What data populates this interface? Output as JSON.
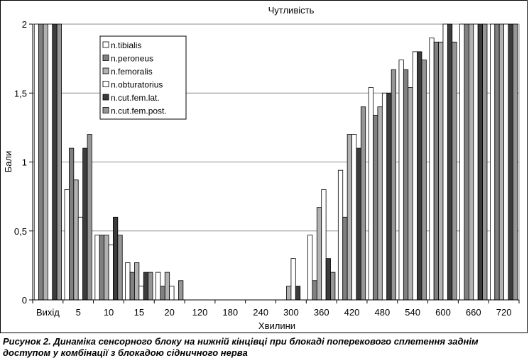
{
  "chart_data": {
    "type": "bar",
    "title": "Чутливість",
    "xlabel": "Хвилини",
    "ylabel": "Бали",
    "ylim": [
      0,
      2
    ],
    "yticks": [
      "0",
      "0,5",
      "1",
      "1,5",
      "2"
    ],
    "grid": true,
    "legend_position": "top-left",
    "categories": [
      "Вихід",
      "5",
      "10",
      "15",
      "20",
      "120",
      "180",
      "240",
      "300",
      "360",
      "420",
      "480",
      "540",
      "600",
      "660",
      "720"
    ],
    "series": [
      {
        "name": "n.tibialis",
        "color": "#ffffff",
        "values": [
          2,
          0.8,
          0.47,
          0.27,
          0.2,
          0,
          0,
          0,
          0,
          0.47,
          0.94,
          1.54,
          1.74,
          1.9,
          2,
          2
        ]
      },
      {
        "name": "n.peroneus",
        "color": "#808080",
        "values": [
          2,
          1.1,
          0.47,
          0.2,
          0.1,
          0,
          0,
          0,
          0,
          0.14,
          0.6,
          1.34,
          1.67,
          1.87,
          2,
          2
        ]
      },
      {
        "name": "n.femoralis",
        "color": "#b2b2b2",
        "values": [
          2,
          0.87,
          0.47,
          0.27,
          0.2,
          0,
          0,
          0,
          0.1,
          0.67,
          1.2,
          1.4,
          1.54,
          1.87,
          2,
          2
        ]
      },
      {
        "name": "n.obturatorius",
        "color": "#ffffff",
        "values": [
          2,
          0.6,
          0.4,
          0.1,
          0.1,
          0,
          0,
          0,
          0.3,
          0.8,
          1.2,
          1.5,
          1.8,
          2,
          2,
          2
        ]
      },
      {
        "name": "n.cut.fem.lat.",
        "color": "#3c3c3c",
        "values": [
          2,
          1.1,
          0.6,
          0.2,
          0,
          0,
          0,
          0,
          0.1,
          0.3,
          1.1,
          1.5,
          1.8,
          2,
          2,
          2
        ]
      },
      {
        "name": "n.cut.fem.post.",
        "color": "#969696",
        "values": [
          2,
          1.2,
          0.47,
          0.2,
          0.14,
          0,
          0,
          0,
          0,
          0.2,
          1.4,
          1.67,
          1.74,
          1.87,
          2,
          2
        ]
      }
    ]
  },
  "caption": "Рисунок 2. Динаміка сенсорного блоку на нижній кінцівці при блокаді поперекового сплетення заднім доступом у комбінації з блокадою сідничного нерва"
}
